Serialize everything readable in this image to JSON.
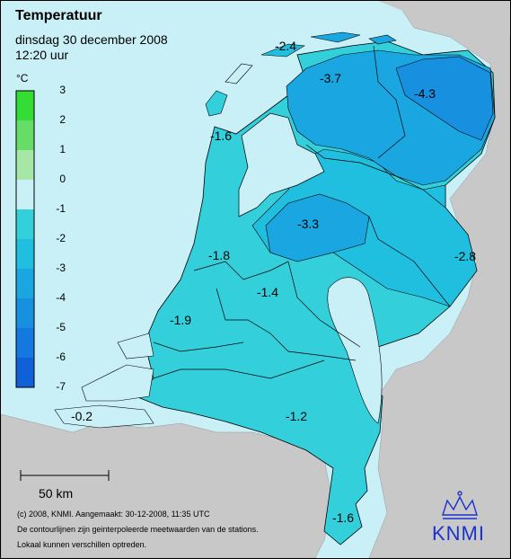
{
  "header": {
    "title": "Temperatuur",
    "date": "dinsdag 30 december 2008",
    "time": "12:20 uur"
  },
  "legend": {
    "unit": "°C",
    "ticks": [
      "3",
      "2",
      "1",
      "0",
      "-1",
      "-2",
      "-3",
      "-4",
      "-5",
      "-6",
      "-7"
    ],
    "bands": [
      {
        "from": 2,
        "to": 3,
        "color": "#33dd33"
      },
      {
        "from": 1,
        "to": 2,
        "color": "#66dd66"
      },
      {
        "from": 0,
        "to": 1,
        "color": "#a6e6a6"
      },
      {
        "from": -1,
        "to": 0,
        "color": "#c8f0f6"
      },
      {
        "from": -2,
        "to": -1,
        "color": "#33d0dc"
      },
      {
        "from": -3,
        "to": -2,
        "color": "#20bfe0"
      },
      {
        "from": -4,
        "to": -3,
        "color": "#1aa6e0"
      },
      {
        "from": -5,
        "to": -4,
        "color": "#1890e0"
      },
      {
        "from": -6,
        "to": -5,
        "color": "#1478e0"
      },
      {
        "from": -7,
        "to": -6,
        "color": "#1060d8"
      }
    ]
  },
  "colors": {
    "sea": "#c8f0f6",
    "neighbor_land": "#c8c8c8",
    "band_minus1_0": "#c8f0f6",
    "band_minus2_minus1": "#33d0dc",
    "band_minus3_minus2": "#20bfe0",
    "band_minus4_minus3": "#1aa6e0",
    "band_minus5_minus4": "#1890e0",
    "knmi_blue": "#1a33cc"
  },
  "temperature_labels": [
    {
      "text": "-2.4",
      "value": -2.4
    },
    {
      "text": "-3.7",
      "value": -3.7
    },
    {
      "text": "-4.3",
      "value": -4.3
    },
    {
      "text": "-1.6",
      "value": -1.6
    },
    {
      "text": "-3.3",
      "value": -3.3
    },
    {
      "text": "-2.8",
      "value": -2.8
    },
    {
      "text": "-1.8",
      "value": -1.8
    },
    {
      "text": "-1.4",
      "value": -1.4
    },
    {
      "text": "-1.9",
      "value": -1.9
    },
    {
      "text": "-0.2",
      "value": -0.2
    },
    {
      "text": "-1.2",
      "value": -1.2
    },
    {
      "text": "-1.6",
      "value": -1.6
    }
  ],
  "scale_bar": {
    "label": "50 km"
  },
  "footer": {
    "line1": "(c) 2008, KNMI. Aangemaakt: 30-12-2008, 11:35 UTC",
    "line2": "De contourlijnen zijn geinterpoleerde meetwaarden van de stations.",
    "line3": "Lokaal kunnen verschillen optreden."
  },
  "logo": {
    "text": "KNMI",
    "icon": "crown-icon"
  }
}
